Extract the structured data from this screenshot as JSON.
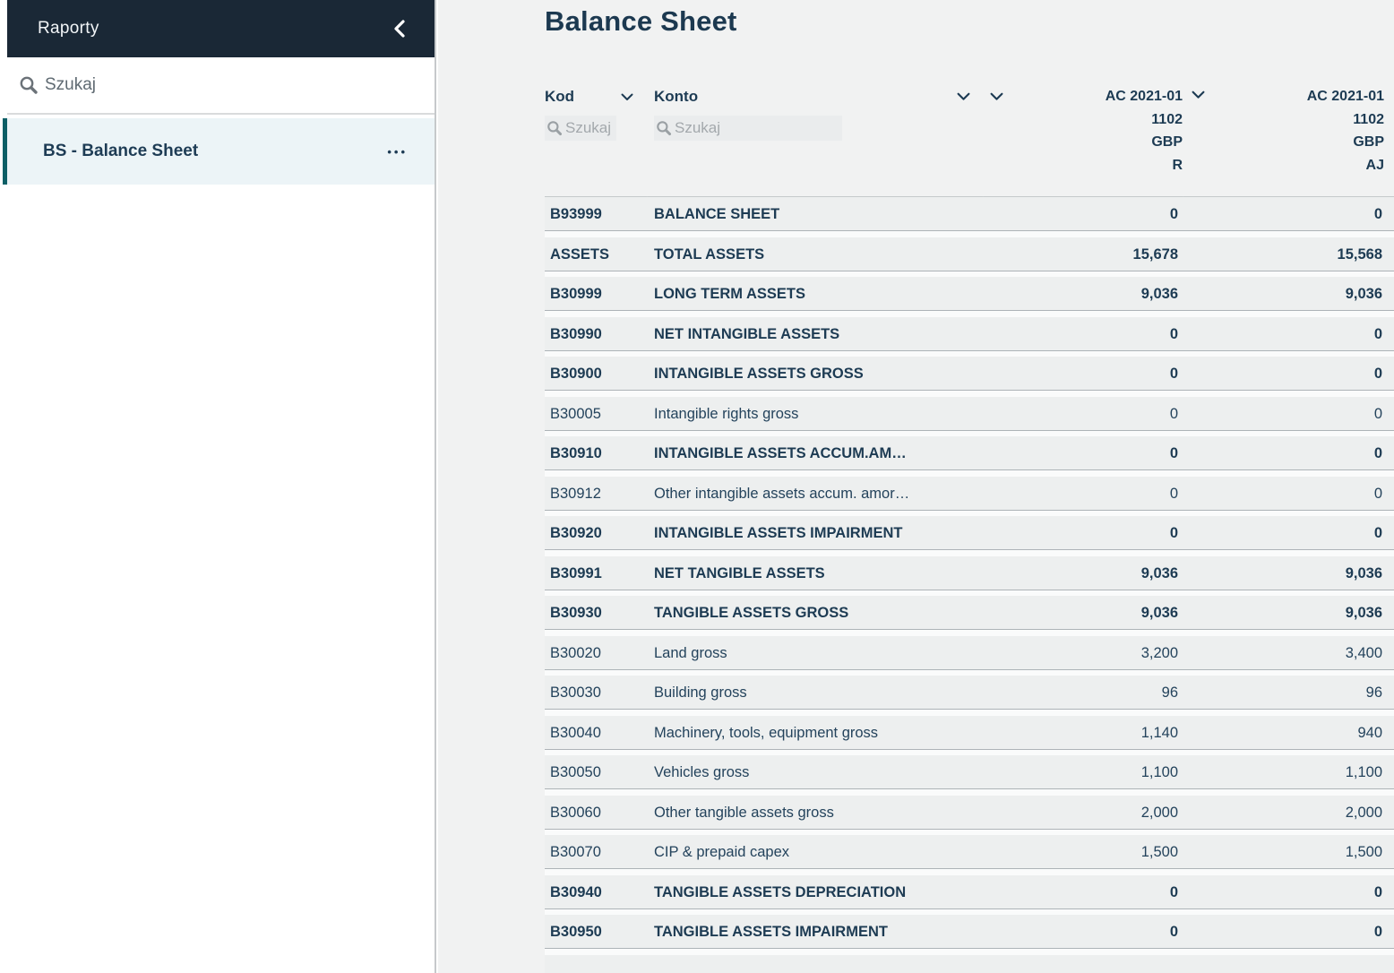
{
  "colors": {
    "sidebar_header_bg": "#1a2836",
    "accent_teal": "#0d5f66",
    "text_navy": "#1d3b53",
    "main_bg": "#f1f2f2",
    "row_bg": "#edefef",
    "selected_item_bg": "#ecf4f7"
  },
  "icons": {
    "sidebar_collapse": "chevron-left-icon",
    "search": "search-icon",
    "item_menu": "ellipsis-icon",
    "column_sort": "chevron-down-icon"
  },
  "sidebar": {
    "header": {
      "title": "Raporty"
    },
    "search": {
      "placeholder": "Szukaj"
    },
    "items": [
      {
        "label": "BS - Balance Sheet",
        "selected": true,
        "menu_glyph": "•••"
      }
    ]
  },
  "main": {
    "title": "Balance Sheet",
    "table": {
      "columns": {
        "kod": {
          "label": "Kod",
          "search_placeholder": "Szukaj"
        },
        "konto": {
          "label": "Konto",
          "search_placeholder": "Szukaj"
        },
        "col1": {
          "lines": [
            "AC 2021-01",
            "1102",
            "GBP",
            "R"
          ]
        },
        "col2": {
          "lines": [
            "AC 2021-01",
            "1102",
            "GBP",
            "AJ"
          ]
        }
      },
      "rows": [
        {
          "kod": "B93999",
          "konto": "BALANCE SHEET",
          "v1": "0",
          "v2": "0",
          "bold": true
        },
        {
          "kod": "ASSETS",
          "konto": "TOTAL ASSETS",
          "v1": "15,678",
          "v2": "15,568",
          "bold": true
        },
        {
          "kod": "B30999",
          "konto": "LONG TERM ASSETS",
          "v1": "9,036",
          "v2": "9,036",
          "bold": true
        },
        {
          "kod": "B30990",
          "konto": "NET INTANGIBLE ASSETS",
          "v1": "0",
          "v2": "0",
          "bold": true
        },
        {
          "kod": "B30900",
          "konto": "INTANGIBLE ASSETS GROSS",
          "v1": "0",
          "v2": "0",
          "bold": true
        },
        {
          "kod": "B30005",
          "konto": "Intangible rights gross",
          "v1": "0",
          "v2": "0",
          "bold": false
        },
        {
          "kod": "B30910",
          "konto": "INTANGIBLE ASSETS ACCUM.AM…",
          "v1": "0",
          "v2": "0",
          "bold": true
        },
        {
          "kod": "B30912",
          "konto": "Other intangible assets accum. amor…",
          "v1": "0",
          "v2": "0",
          "bold": false
        },
        {
          "kod": "B30920",
          "konto": "INTANGIBLE ASSETS IMPAIRMENT",
          "v1": "0",
          "v2": "0",
          "bold": true
        },
        {
          "kod": "B30991",
          "konto": "NET TANGIBLE ASSETS",
          "v1": "9,036",
          "v2": "9,036",
          "bold": true
        },
        {
          "kod": "B30930",
          "konto": "TANGIBLE ASSETS GROSS",
          "v1": "9,036",
          "v2": "9,036",
          "bold": true
        },
        {
          "kod": "B30020",
          "konto": "Land gross",
          "v1": "3,200",
          "v2": "3,400",
          "bold": false
        },
        {
          "kod": "B30030",
          "konto": "Building gross",
          "v1": "96",
          "v2": "96",
          "bold": false
        },
        {
          "kod": "B30040",
          "konto": "Machinery, tools, equipment gross",
          "v1": "1,140",
          "v2": "940",
          "bold": false
        },
        {
          "kod": "B30050",
          "konto": "Vehicles gross",
          "v1": "1,100",
          "v2": "1,100",
          "bold": false
        },
        {
          "kod": "B30060",
          "konto": "Other tangible assets gross",
          "v1": "2,000",
          "v2": "2,000",
          "bold": false
        },
        {
          "kod": "B30070",
          "konto": "CIP & prepaid capex",
          "v1": "1,500",
          "v2": "1,500",
          "bold": false
        },
        {
          "kod": "B30940",
          "konto": "TANGIBLE ASSETS DEPRECIATION",
          "v1": "0",
          "v2": "0",
          "bold": true
        },
        {
          "kod": "B30950",
          "konto": "TANGIBLE ASSETS IMPAIRMENT",
          "v1": "0",
          "v2": "0",
          "bold": true
        }
      ]
    }
  }
}
